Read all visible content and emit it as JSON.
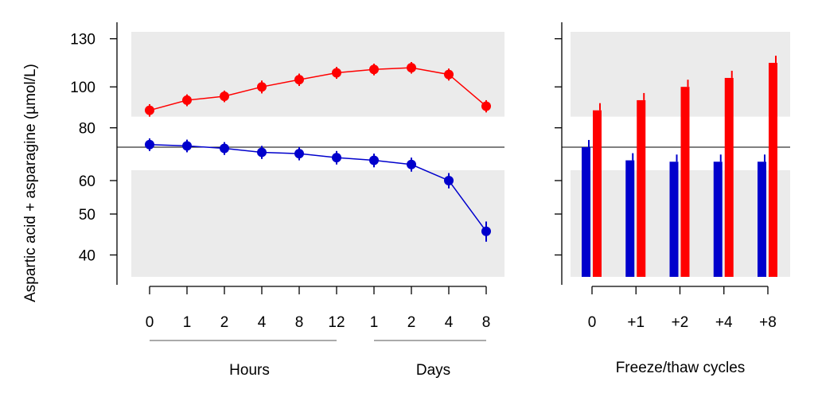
{
  "colors": {
    "high_series": "#ff0000",
    "low_series": "#0000cc",
    "band": "#ebebeb",
    "axis": "#000000",
    "group_line": "#777777"
  },
  "chart_data": [
    {
      "type": "line",
      "ylabel": "Aspartic acid + asparagine (µmol/L)",
      "yscale": "log",
      "yticks": [
        40,
        50,
        60,
        80,
        100,
        130
      ],
      "ylim": [
        35.5,
        135
      ],
      "reference_line": 72,
      "bands": [
        [
          35.5,
          63.5
        ],
        [
          85,
          135
        ]
      ],
      "categories": [
        "0",
        "1",
        "2",
        "4",
        "8",
        "12",
        "1",
        "2",
        "4",
        "8"
      ],
      "groups": [
        {
          "label": "Hours",
          "from": 0,
          "to": 5
        },
        {
          "label": "Days",
          "from": 6,
          "to": 9
        }
      ],
      "series": [
        {
          "color": "#ff0000",
          "values": [
            88,
            93,
            95,
            100,
            104,
            108,
            110,
            111,
            107,
            90
          ],
          "err": [
            3,
            3,
            3,
            3.5,
            3.5,
            3.5,
            3.5,
            3.5,
            3.5,
            3
          ]
        },
        {
          "color": "#0000cc",
          "values": [
            73,
            72.5,
            71.5,
            70,
            69.5,
            68,
            67,
            65.5,
            60,
            45.5
          ],
          "err": [
            2.5,
            2.5,
            2.5,
            2.5,
            2.5,
            2.5,
            2.5,
            2.5,
            2.5,
            2.5
          ]
        }
      ]
    },
    {
      "type": "bar",
      "yscale": "log",
      "ylim": [
        35.5,
        135
      ],
      "reference_line": 72,
      "bands": [
        [
          35.5,
          63.5
        ],
        [
          85,
          135
        ]
      ],
      "categories": [
        "0",
        "+1",
        "+2",
        "+4",
        "+8"
      ],
      "xlabel": "Freeze/thaw cycles",
      "series": [
        {
          "color": "#0000cc",
          "values": [
            72,
            67,
            66.5,
            66.5,
            66.5
          ]
        },
        {
          "color": "#ff0000",
          "values": [
            88,
            93,
            100,
            105,
            114
          ]
        }
      ]
    }
  ]
}
